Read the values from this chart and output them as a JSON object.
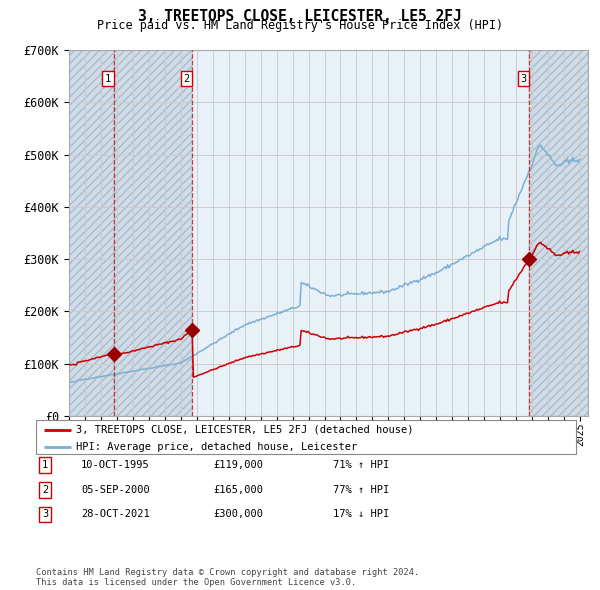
{
  "title": "3, TREETOPS CLOSE, LEICESTER, LE5 2FJ",
  "subtitle": "Price paid vs. HM Land Registry's House Price Index (HPI)",
  "sale_prices": [
    119000,
    165000,
    300000
  ],
  "sale_labels": [
    "1",
    "2",
    "3"
  ],
  "sale_hpi_info": [
    "71% ↑ HPI",
    "77% ↑ HPI",
    "17% ↓ HPI"
  ],
  "sale_date_labels": [
    "10-OCT-1995",
    "05-SEP-2000",
    "28-OCT-2021"
  ],
  "sale_price_labels": [
    "£119,000",
    "£165,000",
    "£300,000"
  ],
  "red_line_color": "#cc0000",
  "blue_line_color": "#7ab0d4",
  "dot_color": "#990000",
  "grid_color": "#cccccc",
  "background_color": "#ffffff",
  "plot_bg_color": "#e8f0f8",
  "hatch_bg_color": "#d0dce8",
  "legend_label_red": "3, TREETOPS CLOSE, LEICESTER, LE5 2FJ (detached house)",
  "legend_label_blue": "HPI: Average price, detached house, Leicester",
  "footer": "Contains HM Land Registry data © Crown copyright and database right 2024.\nThis data is licensed under the Open Government Licence v3.0.",
  "ylim": [
    0,
    700000
  ],
  "yticks": [
    0,
    100000,
    200000,
    300000,
    400000,
    500000,
    600000,
    700000
  ],
  "ytick_labels": [
    "£0",
    "£100K",
    "£200K",
    "£300K",
    "£400K",
    "£500K",
    "£600K",
    "£700K"
  ],
  "xmin": 1993,
  "xmax": 2025.5
}
